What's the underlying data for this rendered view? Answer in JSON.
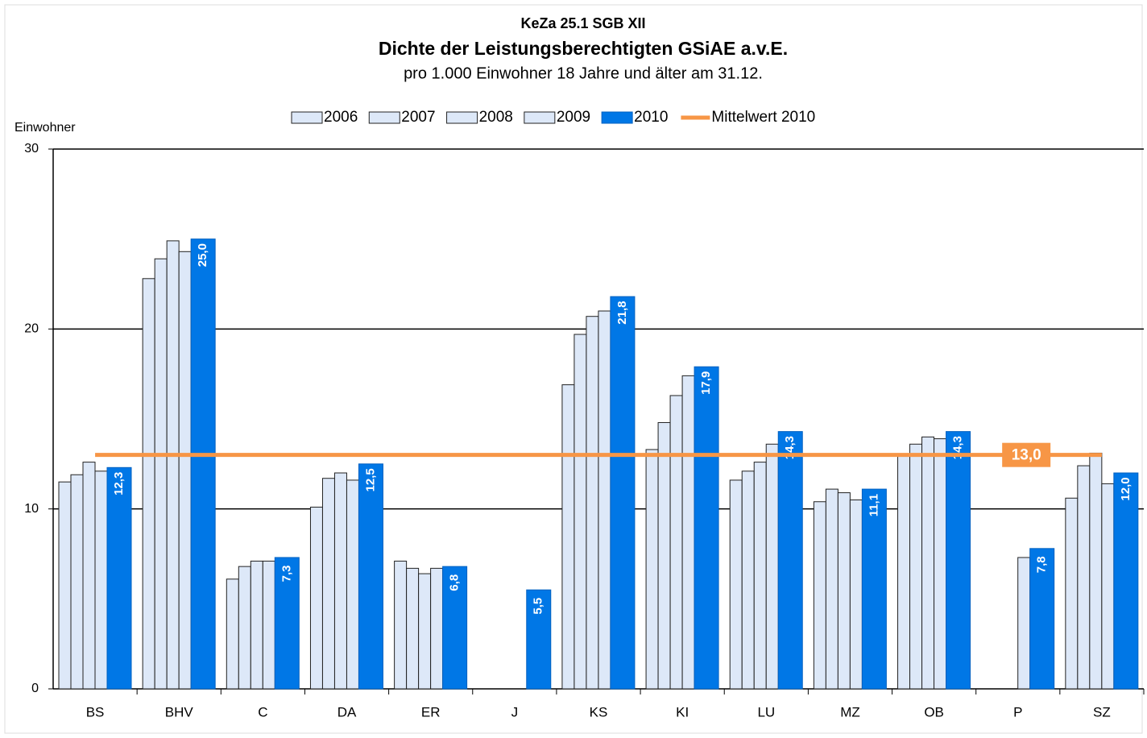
{
  "chart_data": {
    "type": "bar",
    "title": "KeZa 25.1 SGB XII",
    "subtitle": "Dichte der Leistungsberechtigten GSiAE a.v.E.",
    "subtitle2": "pro 1.000 Einwohner 18 Jahre und älter am 31.12.",
    "y_label": "Einwohner",
    "categories": [
      "BS",
      "BHV",
      "C",
      "DA",
      "ER",
      "J",
      "KS",
      "KI",
      "LU",
      "MZ",
      "OB",
      "P",
      "SZ"
    ],
    "series": [
      {
        "name": "2006",
        "color": "#dde8f8",
        "values": [
          11.5,
          22.8,
          6.1,
          10.1,
          7.1,
          null,
          16.9,
          13.3,
          11.6,
          10.4,
          13.0,
          null,
          10.6
        ]
      },
      {
        "name": "2007",
        "color": "#dde8f8",
        "values": [
          11.9,
          23.9,
          6.8,
          11.7,
          6.7,
          null,
          19.7,
          14.8,
          12.1,
          11.1,
          13.6,
          null,
          12.4
        ]
      },
      {
        "name": "2008",
        "color": "#dde8f8",
        "values": [
          12.6,
          24.9,
          7.1,
          12.0,
          6.4,
          null,
          20.7,
          16.3,
          12.6,
          10.9,
          14.0,
          null,
          13.1
        ]
      },
      {
        "name": "2009",
        "color": "#dde8f8",
        "values": [
          12.1,
          24.3,
          7.1,
          11.6,
          6.7,
          null,
          21.0,
          17.4,
          13.6,
          10.5,
          13.9,
          7.3,
          11.4
        ]
      },
      {
        "name": "2010",
        "color": "#0077e6",
        "values": [
          12.3,
          25.0,
          7.3,
          12.5,
          6.8,
          5.5,
          21.8,
          17.9,
          14.3,
          11.1,
          14.3,
          7.8,
          12.0
        ],
        "value_labels": [
          "12,3",
          "25,0",
          "7,3",
          "12,5",
          "6,8",
          "5,5",
          "21,8",
          "17,9",
          "14,3",
          "11,1",
          "14,3",
          "7,8",
          "12,0"
        ]
      }
    ],
    "reference_line": {
      "name": "Mittelwert 2010",
      "value": 13.0,
      "label": "13,0",
      "color": "#f79646"
    },
    "ylim": [
      0,
      30
    ],
    "yticks": [
      0,
      10,
      20,
      30
    ],
    "grid": true
  }
}
